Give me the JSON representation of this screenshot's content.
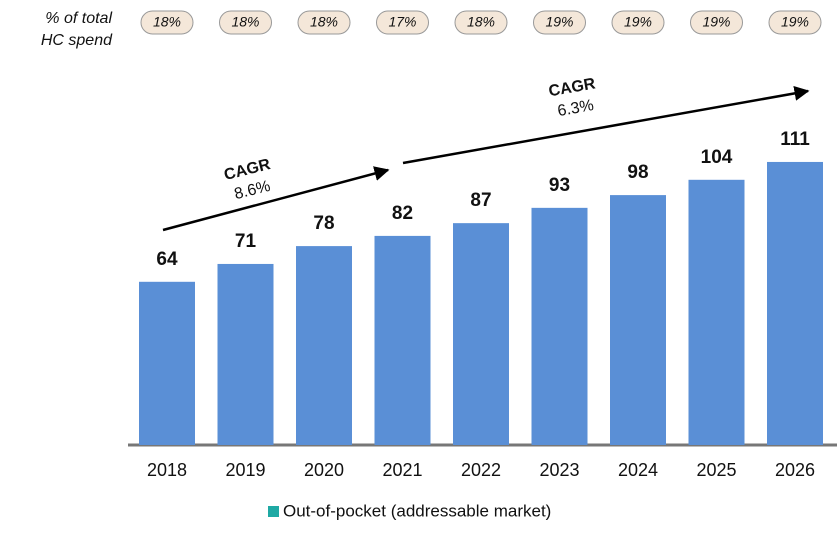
{
  "chart_data": {
    "type": "bar",
    "categories": [
      "2018",
      "2019",
      "2020",
      "2021",
      "2022",
      "2023",
      "2024",
      "2025",
      "2026"
    ],
    "values": [
      64,
      71,
      78,
      82,
      87,
      93,
      98,
      104,
      111
    ],
    "color": "#5a8fd6",
    "ylim": [
      0,
      130
    ],
    "share_title": [
      "% of total",
      "HC spend"
    ],
    "shares": [
      18,
      18,
      18,
      17,
      18,
      19,
      19,
      19,
      19
    ],
    "share_labels": [
      "18%",
      "18%",
      "18%",
      "17%",
      "18%",
      "19%",
      "19%",
      "19%",
      "19%"
    ],
    "annotations": [
      {
        "text": "CAGR",
        "value": "8.6%"
      },
      {
        "text": "CAGR",
        "value": "6.3%"
      }
    ],
    "legend": {
      "label": "Out-of-pocket (addressable market)",
      "color": "#1fa9a4"
    }
  }
}
